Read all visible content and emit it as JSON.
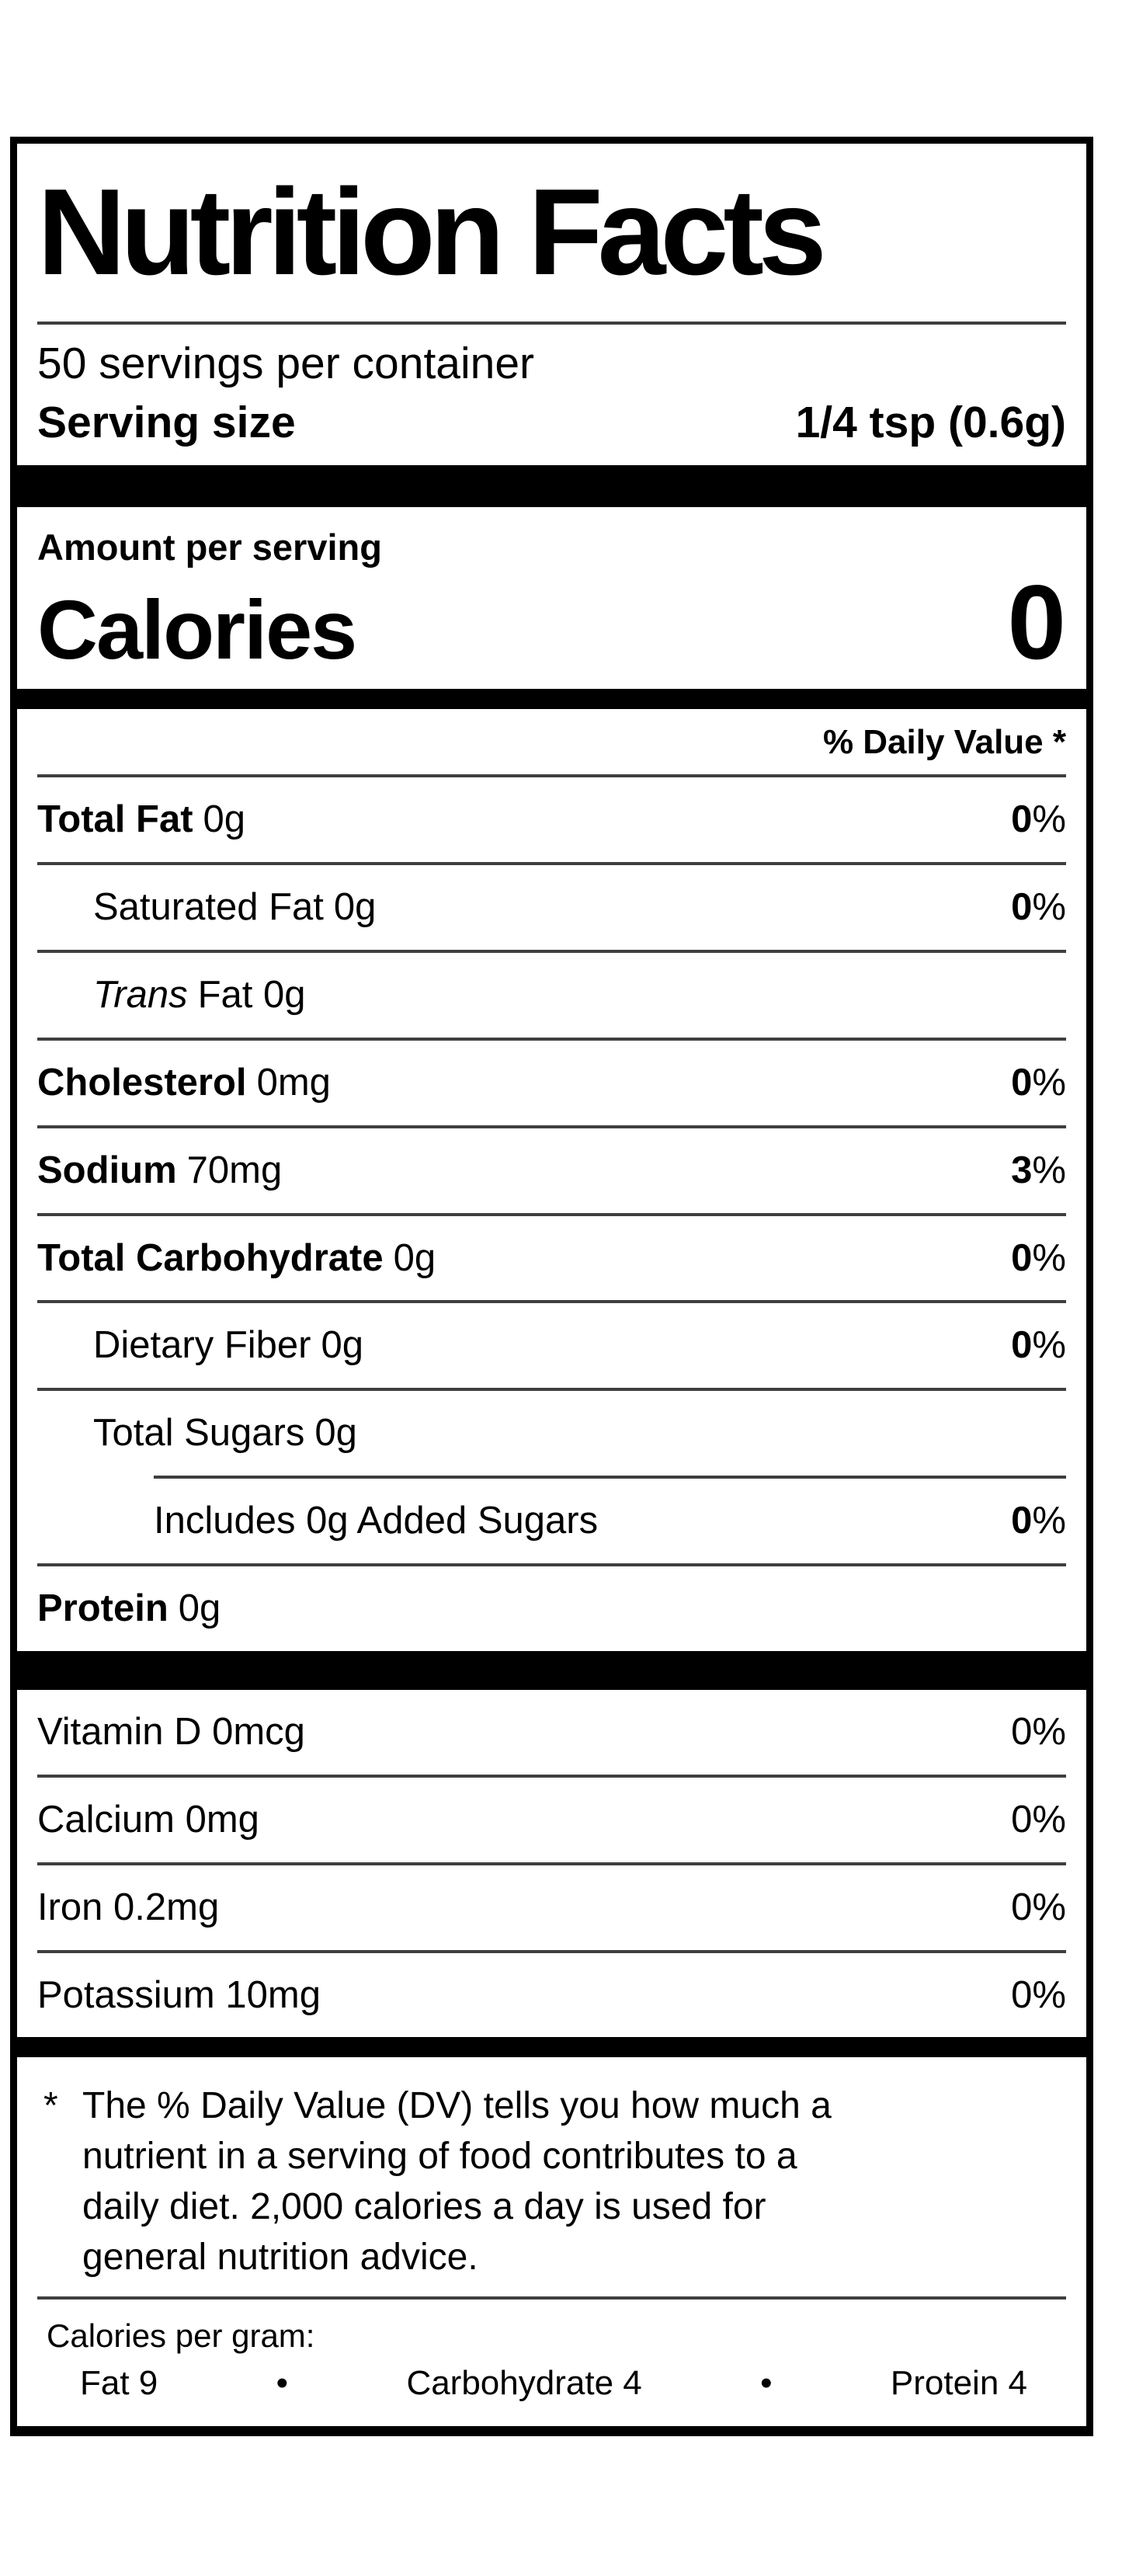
{
  "label": {
    "title": "Nutrition Facts",
    "servings_per_container": "50 servings per container",
    "serving_size": {
      "label": "Serving size",
      "value": "1/4 tsp (0.6g)"
    },
    "amount_per_serving": "Amount per serving",
    "calories": {
      "label": "Calories",
      "value": "0"
    },
    "daily_value_header": "% Daily Value *",
    "rows": [
      {
        "name": "Total Fat",
        "amount": "0g",
        "dv_num": "0",
        "dv_sym": "%"
      },
      {
        "name": "Saturated Fat",
        "amount": "0g",
        "dv_num": "0",
        "dv_sym": "%"
      },
      {
        "name_italic": "Trans",
        "rest": "Fat 0g"
      },
      {
        "name": "Cholesterol",
        "amount": "0mg",
        "dv_num": "0",
        "dv_sym": "%"
      },
      {
        "name": "Sodium",
        "amount": "70mg",
        "dv_num": "3",
        "dv_sym": "%"
      },
      {
        "name": "Total Carbohydrate",
        "amount": "0g",
        "dv_num": "0",
        "dv_sym": "%"
      },
      {
        "name": "Dietary Fiber",
        "amount": "0g",
        "dv_num": "0",
        "dv_sym": "%"
      },
      {
        "name": "Total Sugars",
        "amount": "0g"
      },
      {
        "name": "Includes 0g Added Sugars",
        "dv_num": "0",
        "dv_sym": "%"
      },
      {
        "name": "Protein",
        "amount": "0g"
      }
    ],
    "micros": [
      {
        "name": "Vitamin D 0mcg",
        "dv": "0%"
      },
      {
        "name": "Calcium 0mg",
        "dv": "0%"
      },
      {
        "name": "Iron 0.2mg",
        "dv": "0%"
      },
      {
        "name": "Potassium 10mg",
        "dv": "0%"
      }
    ],
    "footnote": {
      "marker": "*",
      "lines": [
        "The % Daily Value (DV) tells you how much a",
        "nutrient in a serving of food contributes to a",
        "daily diet. 2,000 calories a day is used for",
        "general nutrition advice."
      ]
    },
    "calories_per_gram": {
      "label": "Calories per gram:",
      "items": [
        "Fat 9",
        "Carbohydrate 4",
        "Protein 4"
      ],
      "separator": "•"
    },
    "colors": {
      "ink": "#000000",
      "hairline": "#3f3f3f"
    }
  }
}
